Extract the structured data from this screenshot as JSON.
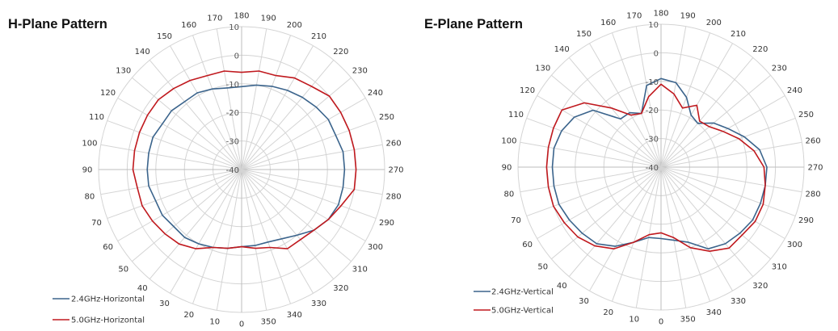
{
  "colors": {
    "series_2_4": "#3b648c",
    "series_5_0": "#c0191e",
    "grid": "#d4d4d4"
  },
  "chart_data": [
    {
      "type": "radar",
      "title": "H-Plane Pattern",
      "angle_labels": [
        "0",
        "10",
        "20",
        "30",
        "40",
        "50",
        "60",
        "70",
        "80",
        "90",
        "100",
        "110",
        "120",
        "130",
        "140",
        "150",
        "160",
        "170",
        "180",
        "190",
        "200",
        "210",
        "220",
        "230",
        "240",
        "250",
        "260",
        "270",
        "280",
        "290",
        "300",
        "310",
        "320",
        "330",
        "340",
        "350"
      ],
      "radial_labels": [
        "-40",
        "-30",
        "-20",
        "-10",
        "0",
        "10"
      ],
      "rlim": [
        -40,
        10
      ],
      "series": [
        {
          "name": "2.4GHz-Horizontal",
          "values": [
            -13,
            -12,
            -11,
            -10,
            -9,
            -9,
            -8,
            -8,
            -7,
            -7,
            -7,
            -7,
            -8,
            -8,
            -9,
            -9,
            -10,
            -11,
            -11,
            -10,
            -9,
            -8,
            -7,
            -6,
            -5,
            -5,
            -4,
            -4,
            -4,
            -4,
            -5,
            -7,
            -10,
            -12,
            -13,
            -13
          ]
        },
        {
          "name": "5.0GHz-Horizontal",
          "values": [
            -13,
            -12,
            -11,
            -8,
            -6,
            -5,
            -4,
            -3,
            -3,
            -2,
            -2,
            -2,
            -2,
            -2,
            -3,
            -4,
            -5,
            -5,
            -6,
            -5,
            -5,
            -3,
            -2,
            0,
            0,
            0,
            0,
            0,
            0,
            -3,
            -5,
            -7,
            -8,
            -8,
            -11,
            -12
          ]
        }
      ]
    },
    {
      "type": "radar",
      "title": "E-Plane Pattern",
      "angle_labels": [
        "0",
        "10",
        "20",
        "30",
        "40",
        "50",
        "60",
        "70",
        "80",
        "90",
        "100",
        "110",
        "120",
        "130",
        "140",
        "150",
        "160",
        "170",
        "180",
        "190",
        "200",
        "210",
        "220",
        "230",
        "240",
        "250",
        "260",
        "270",
        "280",
        "290",
        "300",
        "310",
        "320",
        "330",
        "340",
        "350"
      ],
      "radial_labels": [
        "-40",
        "-30",
        "-20",
        "-10",
        "0",
        "10"
      ],
      "rlim": [
        -40,
        10
      ],
      "series": [
        {
          "name": "2.4GHz-Vertical",
          "values": [
            -15,
            -15,
            -12,
            -8,
            -5,
            -4,
            -3,
            -2,
            -2,
            -2,
            -2,
            -3,
            -5,
            -9,
            -18,
            -18,
            -20,
            -11,
            -9,
            -10,
            -14,
            -19,
            -20,
            -16,
            -13,
            -9,
            -5,
            -3,
            -3,
            -3,
            -3,
            -4,
            -5,
            -7,
            -12,
            -14
          ]
        },
        {
          "name": "5.0GHz-Vertical",
          "values": [
            -17,
            -16,
            -12,
            -7,
            -4,
            -2,
            -1,
            0,
            0,
            0,
            0,
            0,
            0,
            -5,
            -13,
            -19,
            -20,
            -15,
            -11,
            -14,
            -18,
            -15,
            -19,
            -18,
            -15,
            -11,
            -7,
            -4,
            -3,
            -2,
            -2,
            -3,
            -3,
            -6,
            -10,
            -15
          ]
        }
      ]
    }
  ]
}
